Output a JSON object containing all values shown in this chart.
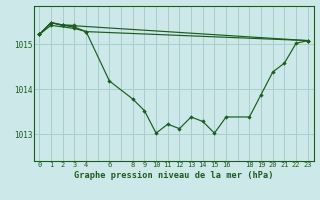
{
  "background_color": "#cce8e8",
  "grid_color": "#a8cccc",
  "line_color": "#1a5e1a",
  "marker_color": "#1a5e1a",
  "title": "Graphe pression niveau de la mer (hPa)",
  "title_color": "#1a5e1a",
  "ylabel_ticks": [
    1013,
    1014,
    1015
  ],
  "xtick_labels": [
    "0",
    "1",
    "2",
    "3",
    "4",
    "",
    "6",
    "",
    "8",
    "9",
    "10",
    "11",
    "12",
    "13",
    "14",
    "15",
    "16",
    "",
    "18",
    "19",
    "20",
    "21",
    "22",
    "23"
  ],
  "xlim": [
    -0.5,
    23.5
  ],
  "ylim": [
    1012.4,
    1015.85
  ],
  "lines": [
    {
      "x": [
        0,
        1,
        3,
        4,
        6,
        8,
        9,
        10,
        11,
        12,
        13,
        14,
        15,
        16,
        18,
        19,
        20,
        21,
        22,
        23
      ],
      "y": [
        1015.22,
        1015.42,
        1015.35,
        1015.28,
        1014.18,
        1013.78,
        1013.52,
        1013.02,
        1013.22,
        1013.12,
        1013.38,
        1013.28,
        1013.02,
        1013.38,
        1013.38,
        1013.88,
        1014.38,
        1014.58,
        1015.02,
        1015.08
      ]
    },
    {
      "x": [
        0,
        1,
        2,
        3
      ],
      "y": [
        1015.22,
        1015.48,
        1015.42,
        1015.42
      ]
    },
    {
      "x": [
        0,
        1,
        2,
        3,
        23
      ],
      "y": [
        1015.22,
        1015.48,
        1015.43,
        1015.41,
        1015.08
      ]
    },
    {
      "x": [
        0,
        1,
        2,
        3,
        4,
        23
      ],
      "y": [
        1015.22,
        1015.48,
        1015.42,
        1015.38,
        1015.28,
        1015.08
      ]
    }
  ]
}
